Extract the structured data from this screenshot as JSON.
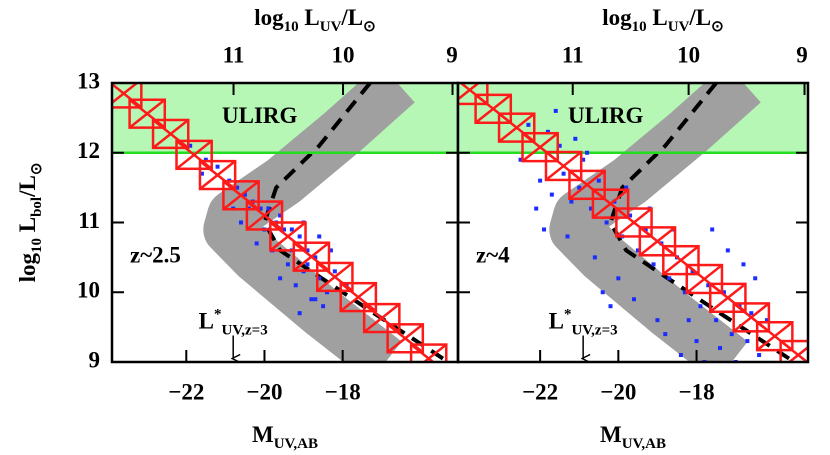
{
  "chart_data": [
    {
      "type": "scatter",
      "x_label": [
        {
          "text": "M"
        },
        {
          "text": "UV,AB",
          "sub": true
        }
      ],
      "top_label": [
        {
          "text": "log"
        },
        {
          "text": "10",
          "sub": true
        },
        {
          "text": " L"
        },
        {
          "text": "UV",
          "sub": true
        },
        {
          "text": "/L"
        },
        {
          "text": "⊙",
          "sub": true
        }
      ],
      "y_label": [
        {
          "text": "log"
        },
        {
          "text": "10",
          "sub": true
        },
        {
          "text": " L"
        },
        {
          "text": "bol",
          "sub": true
        },
        {
          "text": "/L"
        },
        {
          "text": "⊙",
          "sub": true
        }
      ],
      "annotation": "z~2.5",
      "marker_label": [
        {
          "text": "L"
        },
        {
          "text": "*",
          "sup": true
        },
        {
          "text": "UV,z=3",
          "sub": true
        }
      ],
      "marker_x": -20.8,
      "region": {
        "label": "ULIRG",
        "ylim": [
          12,
          13
        ],
        "color": "#b6f7b6",
        "line_color": "#22dd22",
        "label_color": "#1f7a1f"
      },
      "xlim": [
        -23.9,
        -15.05
      ],
      "ylim": [
        9,
        13
      ],
      "xticks": [
        {
          "value": -22,
          "label": "−22"
        },
        {
          "value": -20,
          "label": "−20"
        },
        {
          "value": -18,
          "label": "−18"
        }
      ],
      "yticks": [
        9,
        10,
        11,
        12,
        13
      ],
      "x2lim": [
        12.11,
        8.95
      ],
      "x2ticks": [
        11,
        10,
        9
      ],
      "band": {
        "color": "#a0a0a0",
        "x": [
          -16.6,
          -18.0,
          -19.5,
          -20.8,
          -20.9,
          -20.2,
          -18.5,
          -16.9
        ],
        "values": [
          13,
          12.3,
          11.6,
          11.1,
          10.9,
          10.5,
          9.7,
          9.0
        ]
      },
      "dashed": {
        "color": "#000000",
        "x": [
          -17.3,
          -18.6,
          -19.7,
          -20.0,
          -19.6,
          -18.8,
          -17.2,
          -15.3
        ],
        "values": [
          13,
          12.1,
          11.5,
          11.0,
          10.6,
          10.3,
          9.7,
          9.0
        ]
      },
      "points": {
        "color": "#1a2cff",
        "x": [
          -21.9,
          -21.5,
          -21.2,
          -20.9,
          -20.7,
          -20.5,
          -20.3,
          -20.1,
          -19.9,
          -19.7,
          -19.5,
          -19.3,
          -19.1,
          -18.9,
          -18.7,
          -20.6,
          -20.2,
          -19.8,
          -19.4,
          -19.0,
          -18.6,
          -18.4,
          -18.8,
          -19.2,
          -20.4,
          -19.6,
          -19.0,
          -18.6,
          -18.3,
          -20.0,
          -19.3,
          -18.9,
          -18.5,
          -19.1,
          -17.9,
          -18.2,
          -21.6,
          -20.8,
          -19.6,
          -18.7
        ],
        "values": [
          12.1,
          11.9,
          11.8,
          11.6,
          11.5,
          11.4,
          11.3,
          11.2,
          11.2,
          11.0,
          10.9,
          10.9,
          10.8,
          10.6,
          10.5,
          11.0,
          10.7,
          10.6,
          10.4,
          10.3,
          10.2,
          10.0,
          9.9,
          10.1,
          11.2,
          11.1,
          11.0,
          10.8,
          10.6,
          10.9,
          10.6,
          10.4,
          9.8,
          9.7,
          10.1,
          10.3,
          11.7,
          11.2,
          10.2,
          9.9
        ]
      },
      "stacks": {
        "color": "#ff1a1a",
        "xerr": 0.45,
        "yerr": 0.2,
        "x": [
          -23.6,
          -23.0,
          -22.4,
          -21.8,
          -21.2,
          -20.6,
          -20.0,
          -19.4,
          -18.8,
          -18.2,
          -17.6,
          -17.0,
          -16.4,
          -15.8
        ],
        "values": [
          12.85,
          12.56,
          12.27,
          11.97,
          11.68,
          11.39,
          11.1,
          10.8,
          10.51,
          10.22,
          9.93,
          9.63,
          9.34,
          9.05
        ]
      }
    },
    {
      "type": "scatter",
      "x_label": [
        {
          "text": "M"
        },
        {
          "text": "UV,AB",
          "sub": true
        }
      ],
      "top_label": [
        {
          "text": "log"
        },
        {
          "text": "10",
          "sub": true
        },
        {
          "text": " L"
        },
        {
          "text": "UV",
          "sub": true
        },
        {
          "text": "/L"
        },
        {
          "text": "⊙",
          "sub": true
        }
      ],
      "annotation": "z~4",
      "marker_label": [
        {
          "text": "L"
        },
        {
          "text": "*",
          "sup": true
        },
        {
          "text": "UV,z=3",
          "sub": true
        }
      ],
      "marker_x": -20.9,
      "region": {
        "label": "ULIRG",
        "ylim": [
          12,
          13
        ],
        "color": "#b6f7b6",
        "line_color": "#22dd22",
        "label_color": "#1f7a1f"
      },
      "xlim": [
        -24.1,
        -15.15
      ],
      "ylim": [
        9,
        13
      ],
      "xticks": [
        {
          "value": -22,
          "label": "−22"
        },
        {
          "value": -20,
          "label": "−20"
        },
        {
          "value": -18,
          "label": "−18"
        }
      ],
      "yticks": [
        9,
        10,
        11,
        12,
        13
      ],
      "x2lim": [
        11.99,
        8.97
      ],
      "x2ticks": [
        11,
        10,
        9
      ],
      "band": {
        "color": "#a0a0a0",
        "x": [
          -16.8,
          -18.2,
          -19.7,
          -21.0,
          -21.1,
          -20.4,
          -18.7,
          -17.1
        ],
        "values": [
          13,
          12.3,
          11.6,
          11.1,
          10.9,
          10.5,
          9.7,
          9.0
        ]
      },
      "dashed": {
        "color": "#000000",
        "x": [
          -17.5,
          -18.8,
          -19.9,
          -20.2,
          -19.8,
          -19.0,
          -17.4,
          -15.5
        ],
        "values": [
          13,
          12.1,
          11.5,
          11.0,
          10.6,
          10.3,
          9.7,
          9.0
        ]
      },
      "points": {
        "color": "#1a2cff",
        "x": [
          -22.3,
          -21.8,
          -21.5,
          -21.1,
          -20.9,
          -22.0,
          -21.7,
          -21.4,
          -21.2,
          -21.0,
          -20.7,
          -20.5,
          -20.3,
          -20.1,
          -19.9,
          -19.7,
          -19.5,
          -19.3,
          -19.1,
          -18.9,
          -18.7,
          -18.5,
          -18.3,
          -18.1,
          -17.9,
          -17.7,
          -17.5,
          -17.3,
          -17.1,
          -16.9,
          -16.7,
          -16.5,
          -17.2,
          -17.6,
          -16.8,
          -18.0,
          -18.4,
          -17.8,
          -19.0,
          -19.6,
          -20.0,
          -20.6,
          -21.3,
          -22.1,
          -21.9,
          -20.2,
          -18.8,
          -17.4,
          -16.2,
          -16.4,
          -22.5,
          -21.6,
          -20.8,
          -19.8,
          -19.2,
          -18.6,
          -18.2,
          -17.0,
          -16.6,
          -20.4
        ],
        "values": [
          12.4,
          12.3,
          12.1,
          12.2,
          11.9,
          11.6,
          11.4,
          11.7,
          11.3,
          11.5,
          11.2,
          11.6,
          11.0,
          11.3,
          10.8,
          11.1,
          10.6,
          10.9,
          10.4,
          10.7,
          10.2,
          10.5,
          10.0,
          10.3,
          9.8,
          10.1,
          9.6,
          10.0,
          9.4,
          9.8,
          9.3,
          10.2,
          10.6,
          10.9,
          10.4,
          9.3,
          9.1,
          9.0,
          9.6,
          9.9,
          10.2,
          10.5,
          10.8,
          11.2,
          10.9,
          9.8,
          9.4,
          9.2,
          9.6,
          9.1,
          11.9,
          12.6,
          12.0,
          11.5,
          11.2,
          10.9,
          9.6,
          9.0,
          9.7,
          10.0
        ]
      },
      "stacks": {
        "color": "#ff1a1a",
        "xerr": 0.45,
        "yerr": 0.2,
        "x": [
          -23.8,
          -23.2,
          -22.6,
          -22.0,
          -21.4,
          -20.8,
          -20.2,
          -19.6,
          -19.0,
          -18.4,
          -17.8,
          -17.2,
          -16.6,
          -16.0,
          -15.4
        ],
        "values": [
          12.9,
          12.63,
          12.36,
          12.08,
          11.81,
          11.54,
          11.27,
          11.0,
          10.73,
          10.46,
          10.19,
          9.92,
          9.64,
          9.37,
          9.1
        ]
      }
    }
  ]
}
